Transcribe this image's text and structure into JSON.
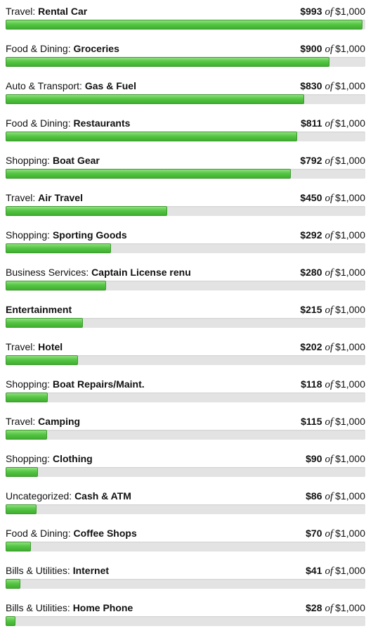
{
  "budget": {
    "of_label": "of",
    "rows": [
      {
        "parent": "Travel:",
        "name": "Rental Car",
        "spent": "$993",
        "total": "$1,000",
        "fraction": 0.993
      },
      {
        "parent": "Food & Dining:",
        "name": "Groceries",
        "spent": "$900",
        "total": "$1,000",
        "fraction": 0.9
      },
      {
        "parent": "Auto & Transport:",
        "name": "Gas & Fuel",
        "spent": "$830",
        "total": "$1,000",
        "fraction": 0.83
      },
      {
        "parent": "Food & Dining:",
        "name": "Restaurants",
        "spent": "$811",
        "total": "$1,000",
        "fraction": 0.811
      },
      {
        "parent": "Shopping:",
        "name": "Boat Gear",
        "spent": "$792",
        "total": "$1,000",
        "fraction": 0.792
      },
      {
        "parent": "Travel:",
        "name": "Air Travel",
        "spent": "$450",
        "total": "$1,000",
        "fraction": 0.45
      },
      {
        "parent": "Shopping:",
        "name": "Sporting Goods",
        "spent": "$292",
        "total": "$1,000",
        "fraction": 0.292
      },
      {
        "parent": "Business Services:",
        "name": "Captain License renu",
        "spent": "$280",
        "total": "$1,000",
        "fraction": 0.28
      },
      {
        "parent": "",
        "name": "Entertainment",
        "spent": "$215",
        "total": "$1,000",
        "fraction": 0.215
      },
      {
        "parent": "Travel:",
        "name": "Hotel",
        "spent": "$202",
        "total": "$1,000",
        "fraction": 0.202
      },
      {
        "parent": "Shopping:",
        "name": "Boat Repairs/Maint.",
        "spent": "$118",
        "total": "$1,000",
        "fraction": 0.118
      },
      {
        "parent": "Travel:",
        "name": "Camping",
        "spent": "$115",
        "total": "$1,000",
        "fraction": 0.115
      },
      {
        "parent": "Shopping:",
        "name": "Clothing",
        "spent": "$90",
        "total": "$1,000",
        "fraction": 0.09
      },
      {
        "parent": "Uncategorized:",
        "name": "Cash & ATM",
        "spent": "$86",
        "total": "$1,000",
        "fraction": 0.086
      },
      {
        "parent": "Food & Dining:",
        "name": "Coffee Shops",
        "spent": "$70",
        "total": "$1,000",
        "fraction": 0.07
      },
      {
        "parent": "Bills & Utilities:",
        "name": "Internet",
        "spent": "$41",
        "total": "$1,000",
        "fraction": 0.041
      },
      {
        "parent": "Bills & Utilities:",
        "name": "Home Phone",
        "spent": "$28",
        "total": "$1,000",
        "fraction": 0.028
      }
    ]
  },
  "colors": {
    "bar_fill": "#56c645",
    "bar_border": "#3f9a31",
    "bar_track": "#e3e3e3"
  }
}
